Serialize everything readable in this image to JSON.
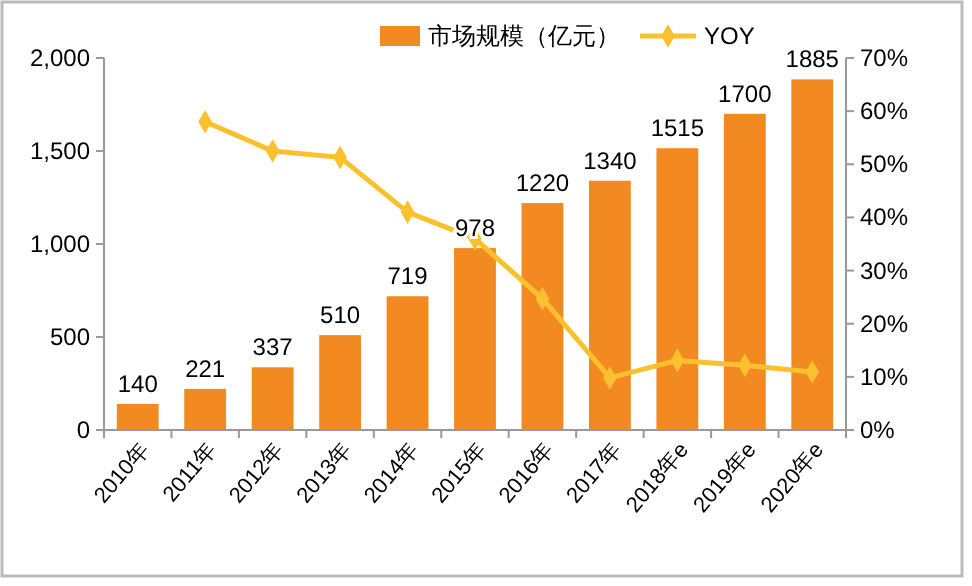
{
  "chart_data": {
    "type": "bar",
    "categories": [
      "2010年",
      "2011年",
      "2012年",
      "2013年",
      "2014年",
      "2015年",
      "2016年",
      "2017年",
      "2018年e",
      "2019年e",
      "2020年e"
    ],
    "series": [
      {
        "name": "市场规模（亿元）",
        "color": "#f28a21",
        "values": [
          140,
          221,
          337,
          510,
          719,
          978,
          1220,
          1340,
          1515,
          1700,
          1885
        ],
        "value_labels": [
          "140",
          "221",
          "337",
          "510",
          "719",
          "978",
          "1220",
          "1340",
          "1515",
          "1700",
          "1885"
        ]
      },
      {
        "name": "YOY",
        "type": "line",
        "axis": "y2",
        "color": "#fbc02d",
        "marker": "diamond",
        "values": [
          null,
          58,
          52.5,
          51.3,
          41,
          36,
          24.7,
          9.8,
          13.1,
          12.2,
          10.9
        ]
      }
    ],
    "ylim": [
      0,
      2000
    ],
    "yticks": [
      0,
      500,
      {
        "value": 1000,
        "label": "1,000"
      },
      {
        "value": 1500,
        "label": "1,500"
      },
      {
        "value": 2000,
        "label": "2,000"
      }
    ],
    "y2lim": [
      0,
      70
    ],
    "y2ticks": [
      {
        "value": 0,
        "label": "0%"
      },
      {
        "value": 10,
        "label": "10%"
      },
      {
        "value": 20,
        "label": "20%"
      },
      {
        "value": 30,
        "label": "30%"
      },
      {
        "value": 40,
        "label": "40%"
      },
      {
        "value": 50,
        "label": "50%"
      },
      {
        "value": 60,
        "label": "60%"
      },
      {
        "value": 70,
        "label": "70%"
      }
    ],
    "legend": "top",
    "grid": false
  }
}
